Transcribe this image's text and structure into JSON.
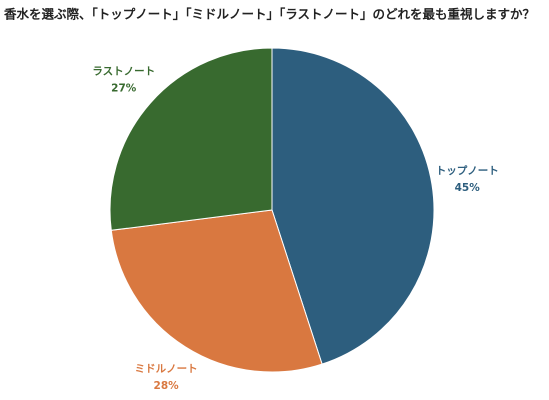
{
  "chart_data": {
    "type": "pie",
    "title": "香水を選ぶ際、「トップノート」「ミドルノート」「ラストノート」のどれを最も重視しますか？",
    "categories": [
      "トップノート",
      "ミドルノート",
      "ラストノート"
    ],
    "values": [
      45,
      28,
      27
    ],
    "value_labels": [
      "45%",
      "28%",
      "27%"
    ],
    "colors": [
      "#2d5e7e",
      "#d97840",
      "#386a2f"
    ]
  }
}
